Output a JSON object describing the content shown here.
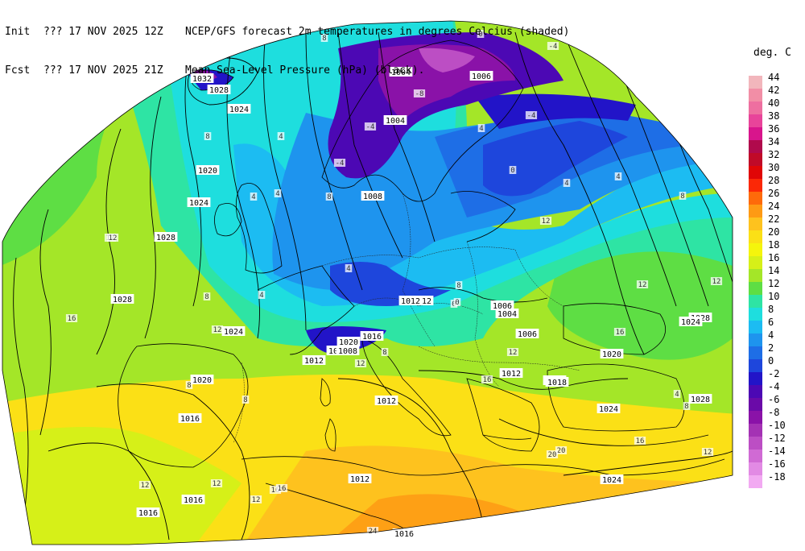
{
  "header": {
    "line1_label": "Init",
    "line1_time": "??? 17 NOV 2025 12Z",
    "line1_desc": "NCEP/GFS forecast 2m temperatures in degrees Celcius (shaded)",
    "line2_label": "Fcst",
    "line2_time": "??? 17 NOV 2025 21Z",
    "line2_desc": "Mean Sea-Level Pressure (hPa) (black)."
  },
  "legend": {
    "title": "deg. C",
    "entries": [
      {
        "label": "44",
        "color": "#f2b6bc"
      },
      {
        "label": "42",
        "color": "#f28ea6"
      },
      {
        "label": "40",
        "color": "#ee6fa0"
      },
      {
        "label": "38",
        "color": "#e8449a"
      },
      {
        "label": "36",
        "color": "#d8158c"
      },
      {
        "label": "34",
        "color": "#b00a4c"
      },
      {
        "label": "32",
        "color": "#c00a28"
      },
      {
        "label": "30",
        "color": "#e00606"
      },
      {
        "label": "28",
        "color": "#fb2806"
      },
      {
        "label": "26",
        "color": "#fe6a0a"
      },
      {
        "label": "24",
        "color": "#fe9a14"
      },
      {
        "label": "22",
        "color": "#fec21e"
      },
      {
        "label": "20",
        "color": "#fbe016"
      },
      {
        "label": "18",
        "color": "#f5f50c"
      },
      {
        "label": "16",
        "color": "#d6f018"
      },
      {
        "label": "14",
        "color": "#a4e628"
      },
      {
        "label": "12",
        "color": "#5ede44"
      },
      {
        "label": "10",
        "color": "#2ee4a4"
      },
      {
        "label": "8",
        "color": "#1edede"
      },
      {
        "label": "6",
        "color": "#1cbcf2"
      },
      {
        "label": "4",
        "color": "#1e94ee"
      },
      {
        "label": "2",
        "color": "#1e6ee6"
      },
      {
        "label": "0",
        "color": "#1e46dc"
      },
      {
        "label": "-2",
        "color": "#2214c8"
      },
      {
        "label": "-4",
        "color": "#4c08b4"
      },
      {
        "label": "-6",
        "color": "#6a0aa8"
      },
      {
        "label": "-8",
        "color": "#8a12a8"
      },
      {
        "label": "-10",
        "color": "#a432b4"
      },
      {
        "label": "-12",
        "color": "#bc4ec4"
      },
      {
        "label": "-14",
        "color": "#d06ad4"
      },
      {
        "label": "-16",
        "color": "#e28ae4"
      },
      {
        "label": "-18",
        "color": "#f2aaf2"
      }
    ]
  },
  "map": {
    "colors": {
      "c_hot24": "#fe9a14",
      "c_22": "#fec21e",
      "c_20": "#fbe016",
      "c_18": "#f5f50c",
      "c_16": "#d6f018",
      "c_14": "#a4e628",
      "c_12": "#5ede44",
      "c_10": "#2ee4a4",
      "c_8": "#1edede",
      "c_6": "#1cbcf2",
      "c_4": "#1e94ee",
      "c_2": "#1e6ee6",
      "c_0": "#1e46dc",
      "c_m2": "#2214c8",
      "c_m4": "#4c08b4",
      "c_m8": "#8a12a8",
      "c_m12": "#bc4ec4"
    },
    "pressure_labels": [
      "1032",
      "1028",
      "1024",
      "1020",
      "1024",
      "1028",
      "1028",
      "1024",
      "1020",
      "1016",
      "1016",
      "1012",
      "1012",
      "1008",
      "1004",
      "1004",
      "1006",
      "1008",
      "1012",
      "1006",
      "1004",
      "1006",
      "1012",
      "1016",
      "1020",
      "1024",
      "1028",
      "1024",
      "1012",
      "1016",
      "1016",
      "1024",
      "1020",
      "1008",
      "1016",
      "1012",
      "1018",
      "1028"
    ],
    "temp_labels": [
      "12",
      "16",
      "8",
      "8",
      "4",
      "4",
      "8",
      "12",
      "12",
      "4",
      "4",
      "0",
      "-4",
      "-4",
      "-4",
      "-8",
      "0",
      "4",
      "4",
      "8",
      "12",
      "16",
      "12",
      "8",
      "8",
      "12",
      "16",
      "20",
      "24",
      "12",
      "12",
      "16",
      "20",
      "16",
      "12",
      "8",
      "4",
      "0",
      "8",
      "12",
      "4",
      "8",
      "12",
      "16",
      "-4",
      "0",
      "4",
      "8",
      "12"
    ]
  }
}
